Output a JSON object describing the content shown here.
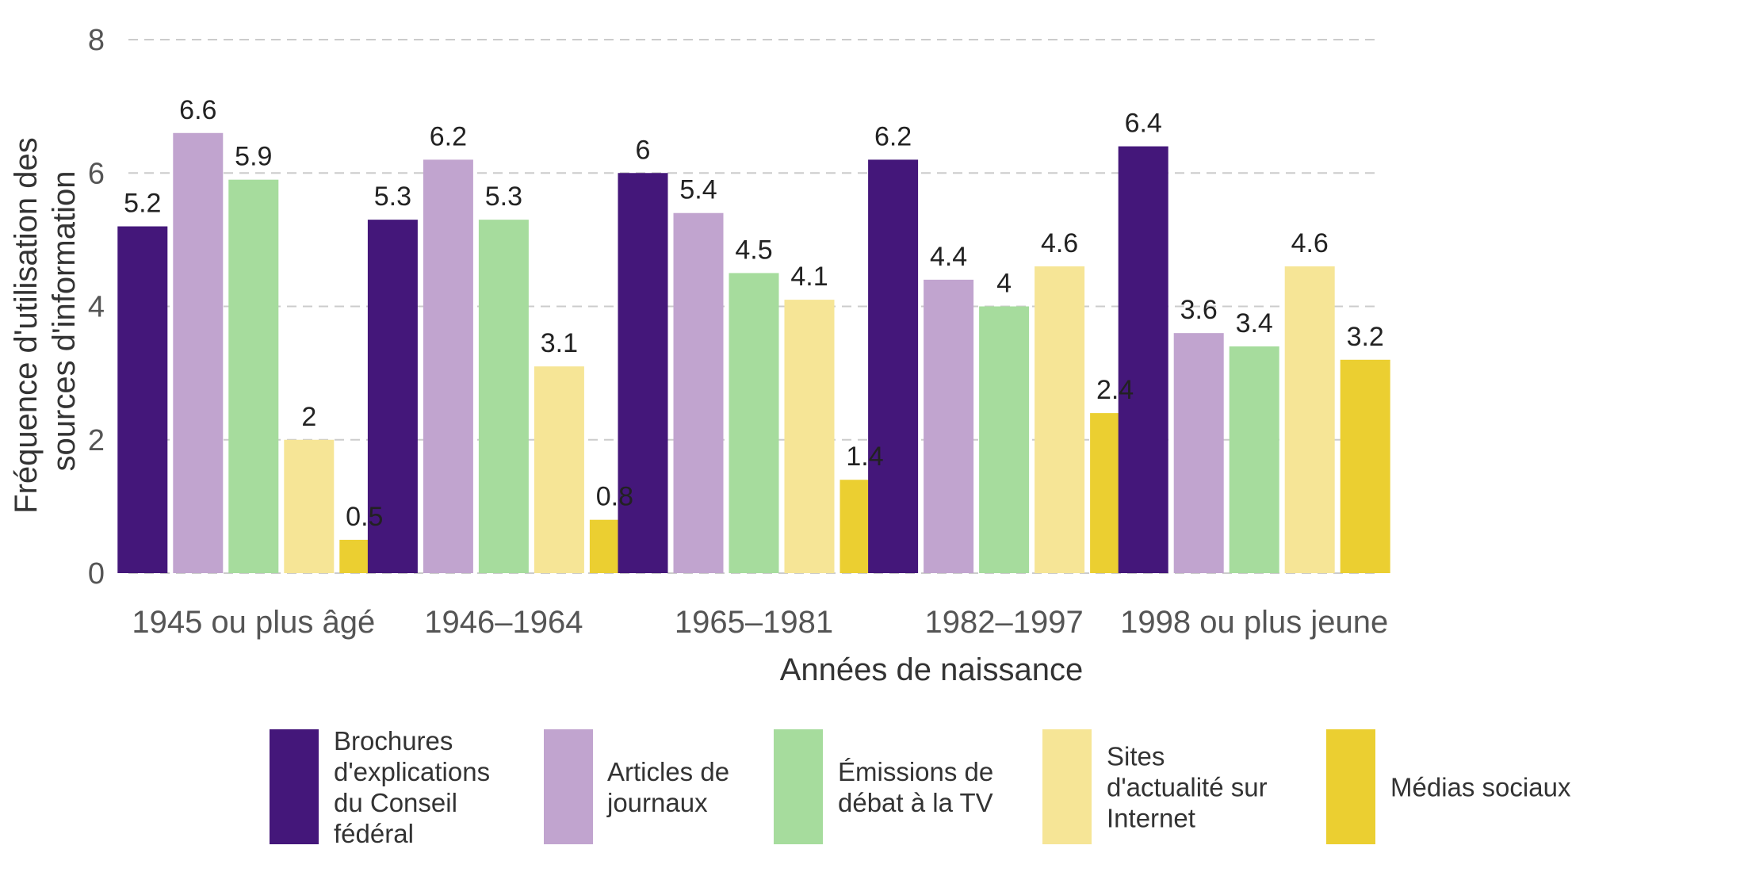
{
  "chart_data": {
    "type": "bar",
    "categories": [
      "1945 ou plus âgé",
      "1946–1964",
      "1965–1981",
      "1982–1997",
      "1998 ou plus jeune"
    ],
    "series": [
      {
        "name": "Brochures d'explications du Conseil fédéral",
        "legend_lines": [
          "Brochures",
          "d'explications",
          "du Conseil",
          "fédéral"
        ],
        "color": "#44177a",
        "values": [
          5.2,
          5.3,
          6.0,
          6.2,
          6.4
        ],
        "labels": [
          "5.2",
          "5.3",
          "6",
          "6.2",
          "6.4"
        ]
      },
      {
        "name": "Articles de journaux",
        "legend_lines": [
          "Articles de",
          "journaux"
        ],
        "color": "#c1a4cf",
        "values": [
          6.6,
          6.2,
          5.4,
          4.4,
          3.6
        ],
        "labels": [
          "6.6",
          "6.2",
          "5.4",
          "4.4",
          "3.6"
        ]
      },
      {
        "name": "Émissions de débat à la TV",
        "legend_lines": [
          "Émissions de",
          "débat à la TV"
        ],
        "color": "#a6dc9d",
        "values": [
          5.9,
          5.3,
          4.5,
          4.0,
          3.4
        ],
        "labels": [
          "5.9",
          "5.3",
          "4.5",
          "4",
          "3.4"
        ]
      },
      {
        "name": "Sites d'actualité sur Internet",
        "legend_lines": [
          "Sites",
          "d'actualité sur",
          "Internet"
        ],
        "color": "#f6e596",
        "values": [
          2.0,
          3.1,
          4.1,
          4.6,
          4.6
        ],
        "labels": [
          "2",
          "3.1",
          "4.1",
          "4.6",
          "4.6"
        ]
      },
      {
        "name": "Médias sociaux",
        "legend_lines": [
          "Médias sociaux"
        ],
        "color": "#ebcf31",
        "values": [
          0.5,
          0.8,
          1.4,
          2.4,
          3.2
        ],
        "labels": [
          "0.5",
          "0.8",
          "1.4",
          "2.4",
          "3.2"
        ]
      }
    ],
    "xlabel": "Années de naissance",
    "ylabel_lines": [
      "Fréquence d'utilisation des",
      "sources d'information"
    ],
    "ylim": [
      0,
      8
    ],
    "yticks": [
      0,
      2,
      4,
      6,
      8
    ],
    "grid": true,
    "legend_position": "bottom"
  }
}
